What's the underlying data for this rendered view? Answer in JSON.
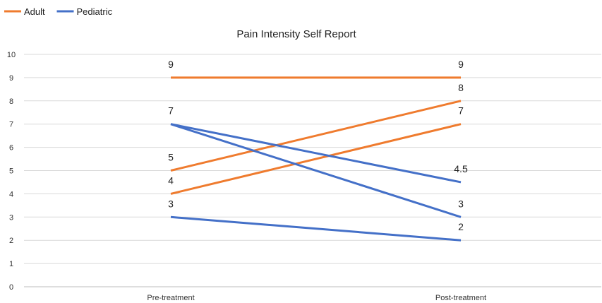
{
  "chart_data": {
    "type": "line",
    "title": "Pain Intensity Self Report",
    "categories": [
      "Pre-treatment",
      "Post-treatment"
    ],
    "ylim": [
      0,
      10
    ],
    "yticks": [
      "0",
      "1",
      "2",
      "3",
      "4",
      "5",
      "6",
      "7",
      "8",
      "9",
      "10"
    ],
    "grid": true,
    "legend_position": "top-left",
    "legend": [
      {
        "name": "Adult",
        "color": "#ef7b2e"
      },
      {
        "name": "Pediatric",
        "color": "#4470c8"
      }
    ],
    "series": [
      {
        "group": "Adult",
        "color": "#ef7b2e",
        "values": [
          9,
          9
        ]
      },
      {
        "group": "Adult",
        "color": "#ef7b2e",
        "values": [
          5,
          8
        ]
      },
      {
        "group": "Adult",
        "color": "#ef7b2e",
        "values": [
          4,
          7
        ]
      },
      {
        "group": "Pediatric",
        "color": "#4470c8",
        "values": [
          7,
          4.5
        ]
      },
      {
        "group": "Pediatric",
        "color": "#4470c8",
        "values": [
          7,
          3
        ]
      },
      {
        "group": "Pediatric",
        "color": "#4470c8",
        "values": [
          3,
          2
        ]
      }
    ],
    "data_labels": [
      {
        "category": 0,
        "value": 9,
        "text": "9"
      },
      {
        "category": 0,
        "value": 7,
        "text": "7"
      },
      {
        "category": 0,
        "value": 5,
        "text": "5"
      },
      {
        "category": 0,
        "value": 4,
        "text": "4"
      },
      {
        "category": 0,
        "value": 3,
        "text": "3"
      },
      {
        "category": 1,
        "value": 9,
        "text": "9"
      },
      {
        "category": 1,
        "value": 8,
        "text": "8"
      },
      {
        "category": 1,
        "value": 7,
        "text": "7"
      },
      {
        "category": 1,
        "value": 4.5,
        "text": "4.5"
      },
      {
        "category": 1,
        "value": 3,
        "text": "3"
      },
      {
        "category": 1,
        "value": 2,
        "text": "2"
      }
    ]
  }
}
